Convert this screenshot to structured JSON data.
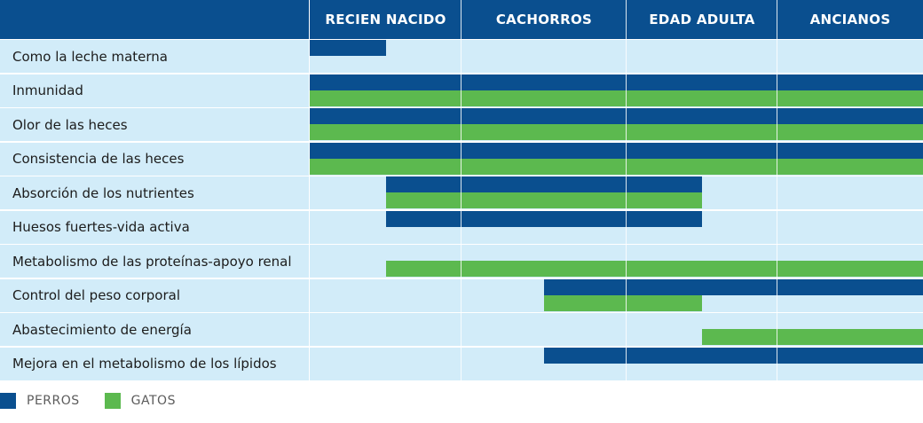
{
  "chart_data": {
    "type": "gantt",
    "stages": [
      "RECIEN NACIDO",
      "CACHORROS",
      "EDAD ADULTA",
      "ANCIANOS"
    ],
    "series": [
      {
        "name": "PERROS",
        "color": "#0a4f8f"
      },
      {
        "name": "GATOS",
        "color": "#5cb94f"
      }
    ],
    "rows": [
      {
        "label": "Como la leche materna",
        "PERROS": [
          0,
          0.5
        ],
        "GATOS": null
      },
      {
        "label": "Inmunidad",
        "PERROS": [
          0,
          4
        ],
        "GATOS": [
          0,
          4
        ]
      },
      {
        "label": "Olor de las heces",
        "PERROS": [
          0,
          4
        ],
        "GATOS": [
          0,
          4
        ]
      },
      {
        "label": "Consistencia de las heces",
        "PERROS": [
          0,
          4
        ],
        "GATOS": [
          0,
          4
        ]
      },
      {
        "label": "Absorción de los nutrientes",
        "PERROS": [
          0.5,
          2.5
        ],
        "GATOS": [
          0.5,
          2.5
        ]
      },
      {
        "label": "Huesos fuertes-vida activa",
        "PERROS": [
          0.5,
          2.5
        ],
        "GATOS": null
      },
      {
        "label": "Metabolismo de las proteínas-apoyo renal",
        "PERROS": null,
        "GATOS": [
          0.5,
          4
        ]
      },
      {
        "label": "Control del peso corporal",
        "PERROS": [
          1.5,
          4
        ],
        "GATOS": [
          1.5,
          2.5
        ]
      },
      {
        "label": "Abastecimiento de energía",
        "PERROS": null,
        "GATOS": [
          2.5,
          4
        ]
      },
      {
        "label": "Mejora en el metabolismo de los lípidos",
        "PERROS": [
          1.5,
          4
        ],
        "GATOS": null
      }
    ]
  }
}
